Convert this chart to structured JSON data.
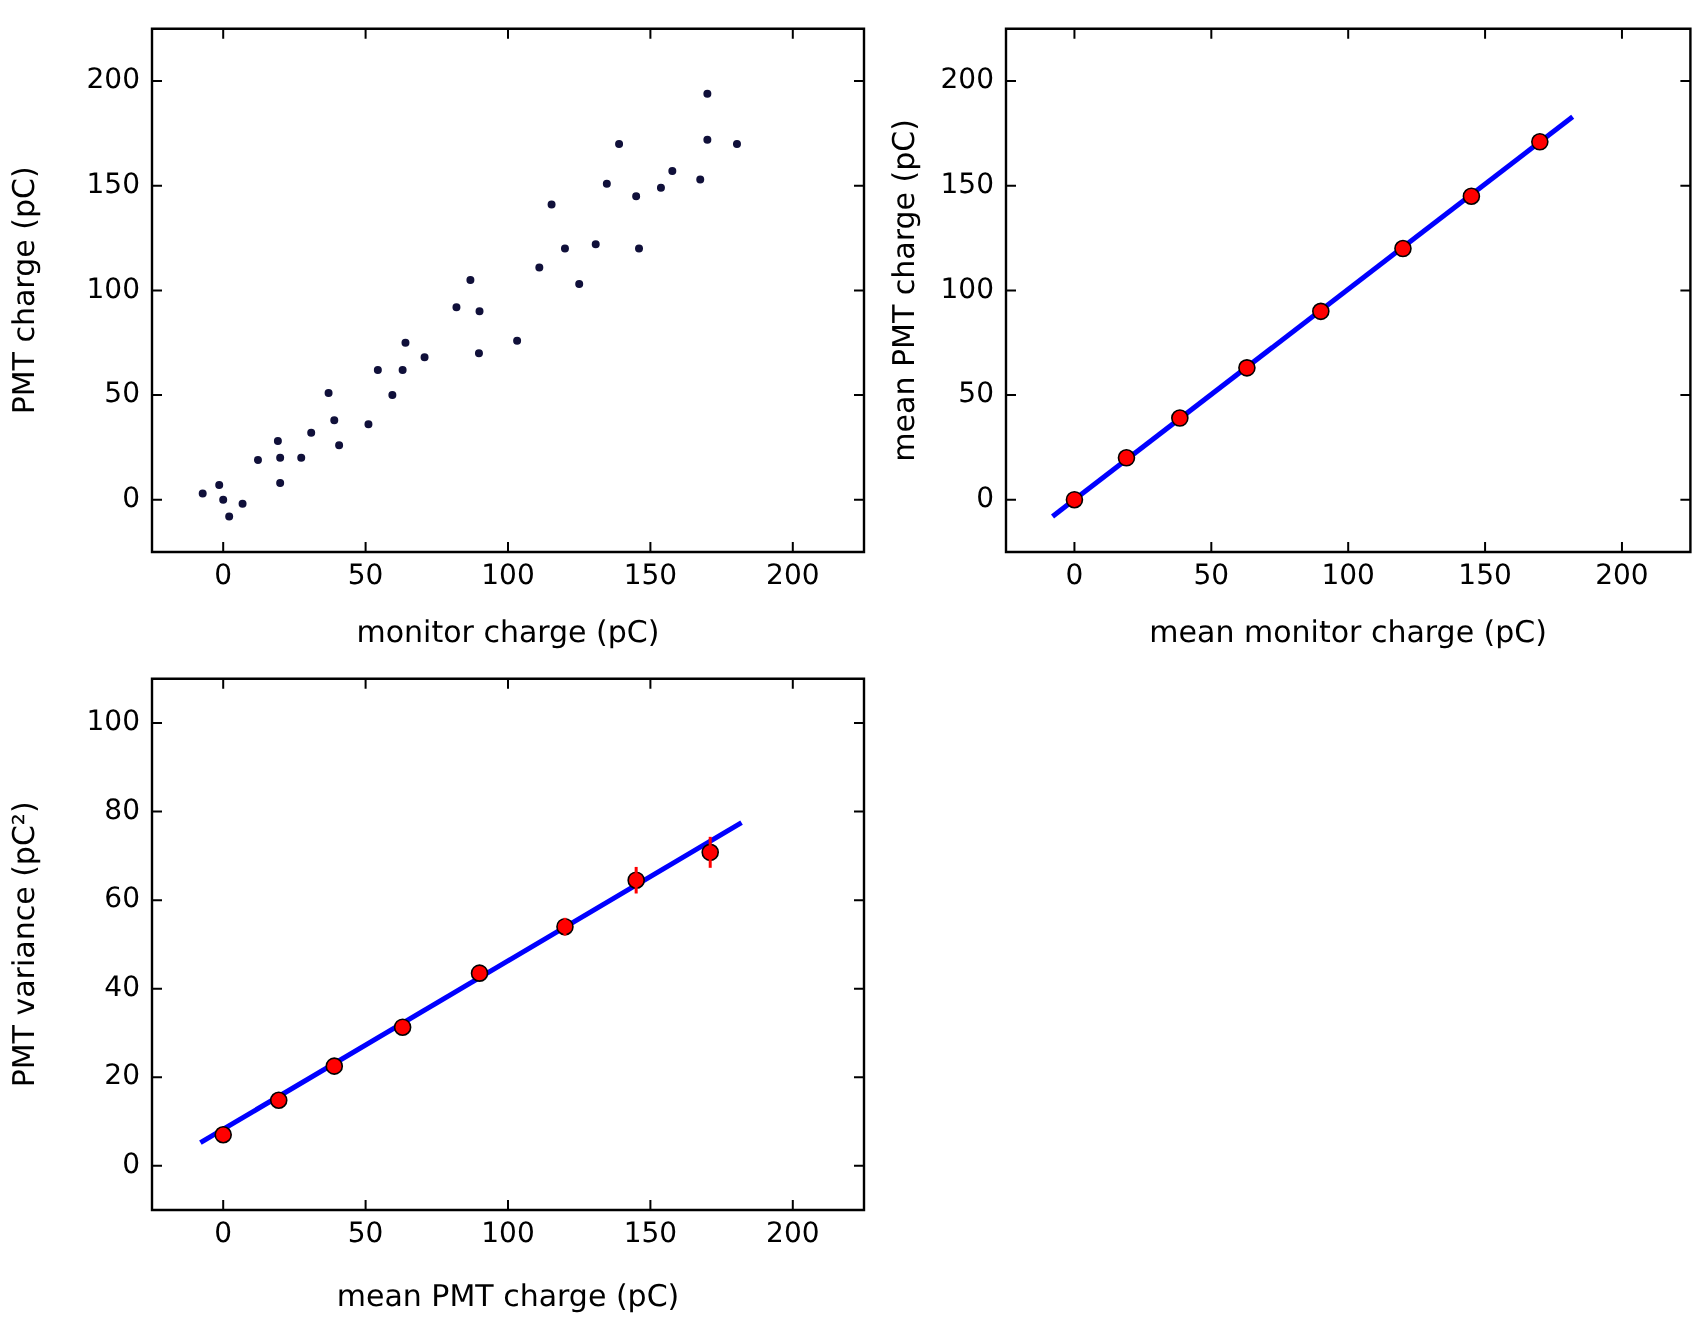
{
  "chart_data": [
    {
      "type": "scatter",
      "xlabel": "monitor charge (pC)",
      "ylabel": "PMT charge (pC)",
      "xlim": [
        -25,
        225
      ],
      "ylim": [
        -25,
        225
      ],
      "xticks": [
        0,
        50,
        100,
        150,
        200
      ],
      "yticks": [
        0,
        50,
        100,
        150,
        200
      ],
      "grid": false,
      "legend": false,
      "marker": "circle",
      "series": [
        {
          "color": "#10103a",
          "x": [
            0,
            -1.4,
            2.1,
            -7.2,
            6.8,
            20,
            19.2,
            20,
            12.2,
            27.4,
            39,
            37,
            40.7,
            30.9,
            51,
            63,
            64,
            59.4,
            54.3,
            70.7,
            90,
            86.8,
            89.8,
            81.9,
            103.2,
            120,
            115.3,
            125,
            111,
            130.8,
            145,
            139,
            146,
            134.7,
            153.7,
            170,
            170,
            180.4,
            157.7,
            167.5
          ],
          "values": [
            0,
            7,
            -8,
            3,
            -2,
            20,
            28,
            8,
            19,
            20,
            38,
            51,
            26,
            32,
            36,
            62,
            75,
            50,
            62,
            68,
            90,
            105,
            70,
            92,
            76,
            120,
            141,
            103,
            111,
            122,
            145,
            170,
            120,
            151,
            149,
            172,
            194,
            170,
            157,
            153
          ]
        }
      ]
    },
    {
      "type": "scatter",
      "xlabel": "mean monitor charge (pC)",
      "ylabel": "mean PMT charge (pC)",
      "xlim": [
        -25,
        225
      ],
      "ylim": [
        -25,
        225
      ],
      "xticks": [
        0,
        50,
        100,
        150,
        200
      ],
      "yticks": [
        0,
        50,
        100,
        150,
        200
      ],
      "grid": false,
      "legend": false,
      "series": [
        {
          "type": "line",
          "color": "#0000ff",
          "marker": "none",
          "x": [
            -8,
            182
          ],
          "values": [
            -8,
            183
          ]
        },
        {
          "type": "scatter",
          "color": "#ff0000",
          "marker": "circle",
          "x": [
            0,
            19,
            38.5,
            63,
            90,
            120,
            145,
            170
          ],
          "values": [
            0,
            20,
            39,
            63,
            90,
            120,
            145,
            171
          ]
        }
      ]
    },
    {
      "type": "scatter",
      "xlabel": "mean PMT charge (pC)",
      "ylabel": "PMT variance (pC²)",
      "xlim": [
        -25,
        225
      ],
      "ylim": [
        -10,
        110
      ],
      "xticks": [
        0,
        50,
        100,
        150,
        200
      ],
      "yticks": [
        0,
        20,
        40,
        60,
        80,
        100
      ],
      "grid": false,
      "legend": false,
      "series": [
        {
          "type": "line",
          "color": "#0000ff",
          "marker": "none",
          "x": [
            -8,
            182
          ],
          "values": [
            5.2,
            77.5
          ]
        },
        {
          "type": "scatter",
          "color": "#ff0000",
          "marker": "circle",
          "x": [
            0,
            19.5,
            39,
            63,
            90,
            120,
            145,
            171
          ],
          "values": [
            7,
            14.8,
            22.5,
            31.3,
            43.5,
            54,
            64.5,
            70.8
          ],
          "errors": [
            0.7,
            0.7,
            0.7,
            1,
            1,
            2,
            3,
            3.5
          ]
        }
      ]
    }
  ]
}
